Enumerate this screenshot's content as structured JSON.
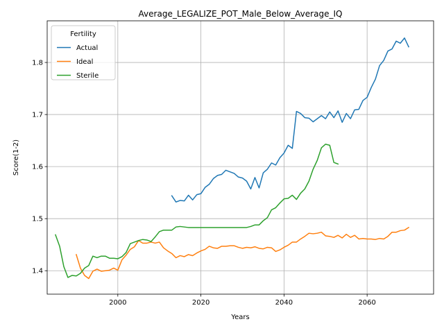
{
  "chart_data": {
    "type": "line",
    "title": "Average_LEGALIZE_POT_Male_Below_Average_IQ",
    "xlabel": "Years",
    "ylabel": "Score(1-2)",
    "xlim": [
      1983,
      2076
    ],
    "ylim": [
      1.355,
      1.88
    ],
    "xticks": [
      2000,
      2020,
      2040,
      2060
    ],
    "yticks": [
      1.4,
      1.5,
      1.6,
      1.7,
      1.8
    ],
    "grid": true,
    "legend": {
      "title": "Fertility",
      "position": "top-left"
    },
    "series": [
      {
        "name": "Actual",
        "color": "#1f77b4",
        "points": [
          [
            2013,
            1.544
          ],
          [
            2014,
            1.532
          ],
          [
            2015,
            1.535
          ],
          [
            2016,
            1.534
          ],
          [
            2017,
            1.545
          ],
          [
            2018,
            1.536
          ],
          [
            2019,
            1.546
          ],
          [
            2020,
            1.548
          ],
          [
            2021,
            1.56
          ],
          [
            2022,
            1.566
          ],
          [
            2023,
            1.577
          ],
          [
            2024,
            1.583
          ],
          [
            2025,
            1.585
          ],
          [
            2026,
            1.593
          ],
          [
            2027,
            1.59
          ],
          [
            2028,
            1.587
          ],
          [
            2029,
            1.58
          ],
          [
            2030,
            1.578
          ],
          [
            2031,
            1.572
          ],
          [
            2032,
            1.557
          ],
          [
            2033,
            1.579
          ],
          [
            2034,
            1.559
          ],
          [
            2035,
            1.588
          ],
          [
            2036,
            1.595
          ],
          [
            2037,
            1.607
          ],
          [
            2038,
            1.603
          ],
          [
            2039,
            1.617
          ],
          [
            2040,
            1.626
          ],
          [
            2041,
            1.641
          ],
          [
            2042,
            1.635
          ],
          [
            2043,
            1.706
          ],
          [
            2044,
            1.702
          ],
          [
            2045,
            1.694
          ],
          [
            2046,
            1.693
          ],
          [
            2047,
            1.686
          ],
          [
            2048,
            1.692
          ],
          [
            2049,
            1.698
          ],
          [
            2050,
            1.692
          ],
          [
            2051,
            1.705
          ],
          [
            2052,
            1.694
          ],
          [
            2053,
            1.707
          ],
          [
            2054,
            1.685
          ],
          [
            2055,
            1.702
          ],
          [
            2056,
            1.692
          ],
          [
            2057,
            1.709
          ],
          [
            2058,
            1.71
          ],
          [
            2059,
            1.727
          ],
          [
            2060,
            1.733
          ],
          [
            2061,
            1.752
          ],
          [
            2062,
            1.768
          ],
          [
            2063,
            1.794
          ],
          [
            2064,
            1.804
          ],
          [
            2065,
            1.822
          ],
          [
            2066,
            1.826
          ],
          [
            2067,
            1.841
          ],
          [
            2068,
            1.837
          ],
          [
            2069,
            1.847
          ],
          [
            2070,
            1.83
          ]
        ]
      },
      {
        "name": "Ideal",
        "color": "#ff7f0e",
        "points": [
          [
            1990,
            1.431
          ],
          [
            1991,
            1.405
          ],
          [
            1992,
            1.391
          ],
          [
            1993,
            1.385
          ],
          [
            1994,
            1.399
          ],
          [
            1995,
            1.403
          ],
          [
            1996,
            1.399
          ],
          [
            1997,
            1.4
          ],
          [
            1998,
            1.401
          ],
          [
            1999,
            1.405
          ],
          [
            2000,
            1.401
          ],
          [
            2001,
            1.421
          ],
          [
            2002,
            1.43
          ],
          [
            2003,
            1.441
          ],
          [
            2004,
            1.446
          ],
          [
            2005,
            1.458
          ],
          [
            2006,
            1.453
          ],
          [
            2007,
            1.453
          ],
          [
            2008,
            1.455
          ],
          [
            2009,
            1.453
          ],
          [
            2010,
            1.455
          ],
          [
            2011,
            1.444
          ],
          [
            2012,
            1.438
          ],
          [
            2013,
            1.433
          ],
          [
            2014,
            1.425
          ],
          [
            2015,
            1.429
          ],
          [
            2016,
            1.427
          ],
          [
            2017,
            1.431
          ],
          [
            2018,
            1.429
          ],
          [
            2019,
            1.434
          ],
          [
            2020,
            1.438
          ],
          [
            2021,
            1.441
          ],
          [
            2022,
            1.447
          ],
          [
            2023,
            1.444
          ],
          [
            2024,
            1.443
          ],
          [
            2025,
            1.447
          ],
          [
            2026,
            1.447
          ],
          [
            2027,
            1.448
          ],
          [
            2028,
            1.448
          ],
          [
            2029,
            1.445
          ],
          [
            2030,
            1.443
          ],
          [
            2031,
            1.445
          ],
          [
            2032,
            1.444
          ],
          [
            2033,
            1.446
          ],
          [
            2034,
            1.443
          ],
          [
            2035,
            1.442
          ],
          [
            2036,
            1.445
          ],
          [
            2037,
            1.444
          ],
          [
            2038,
            1.437
          ],
          [
            2039,
            1.44
          ],
          [
            2040,
            1.445
          ],
          [
            2041,
            1.449
          ],
          [
            2042,
            1.455
          ],
          [
            2043,
            1.455
          ],
          [
            2044,
            1.461
          ],
          [
            2045,
            1.466
          ],
          [
            2046,
            1.472
          ],
          [
            2047,
            1.471
          ],
          [
            2048,
            1.472
          ],
          [
            2049,
            1.474
          ],
          [
            2050,
            1.467
          ],
          [
            2051,
            1.466
          ],
          [
            2052,
            1.464
          ],
          [
            2053,
            1.468
          ],
          [
            2054,
            1.463
          ],
          [
            2055,
            1.47
          ],
          [
            2056,
            1.464
          ],
          [
            2057,
            1.468
          ],
          [
            2058,
            1.461
          ],
          [
            2059,
            1.462
          ],
          [
            2060,
            1.461
          ],
          [
            2061,
            1.461
          ],
          [
            2062,
            1.46
          ],
          [
            2063,
            1.462
          ],
          [
            2064,
            1.461
          ],
          [
            2065,
            1.466
          ],
          [
            2066,
            1.474
          ],
          [
            2067,
            1.474
          ],
          [
            2068,
            1.477
          ],
          [
            2069,
            1.478
          ],
          [
            2070,
            1.483
          ]
        ]
      },
      {
        "name": "Sterile",
        "color": "#2ca02c",
        "points": [
          [
            1985,
            1.469
          ],
          [
            1986,
            1.447
          ],
          [
            1987,
            1.408
          ],
          [
            1988,
            1.387
          ],
          [
            1989,
            1.391
          ],
          [
            1990,
            1.39
          ],
          [
            1991,
            1.395
          ],
          [
            1992,
            1.405
          ],
          [
            1993,
            1.41
          ],
          [
            1994,
            1.428
          ],
          [
            1995,
            1.425
          ],
          [
            1996,
            1.428
          ],
          [
            1997,
            1.428
          ],
          [
            1998,
            1.424
          ],
          [
            1999,
            1.424
          ],
          [
            2000,
            1.423
          ],
          [
            2001,
            1.427
          ],
          [
            2002,
            1.435
          ],
          [
            2003,
            1.452
          ],
          [
            2004,
            1.455
          ],
          [
            2005,
            1.458
          ],
          [
            2006,
            1.46
          ],
          [
            2007,
            1.459
          ],
          [
            2008,
            1.456
          ],
          [
            2009,
            1.465
          ],
          [
            2010,
            1.475
          ],
          [
            2011,
            1.478
          ],
          [
            2012,
            1.478
          ],
          [
            2013,
            1.478
          ],
          [
            2014,
            1.484
          ],
          [
            2015,
            1.485
          ],
          [
            2016,
            1.484
          ],
          [
            2017,
            1.483
          ],
          [
            2018,
            1.483
          ],
          [
            2019,
            1.483
          ],
          [
            2020,
            1.483
          ],
          [
            2021,
            1.483
          ],
          [
            2022,
            1.483
          ],
          [
            2023,
            1.483
          ],
          [
            2024,
            1.483
          ],
          [
            2025,
            1.483
          ],
          [
            2026,
            1.483
          ],
          [
            2027,
            1.483
          ],
          [
            2028,
            1.483
          ],
          [
            2029,
            1.483
          ],
          [
            2030,
            1.483
          ],
          [
            2031,
            1.483
          ],
          [
            2032,
            1.485
          ],
          [
            2033,
            1.488
          ],
          [
            2034,
            1.488
          ],
          [
            2035,
            1.496
          ],
          [
            2036,
            1.502
          ],
          [
            2037,
            1.517
          ],
          [
            2038,
            1.521
          ],
          [
            2039,
            1.53
          ],
          [
            2040,
            1.538
          ],
          [
            2041,
            1.539
          ],
          [
            2042,
            1.545
          ],
          [
            2043,
            1.537
          ],
          [
            2044,
            1.549
          ],
          [
            2045,
            1.557
          ],
          [
            2046,
            1.572
          ],
          [
            2047,
            1.595
          ],
          [
            2048,
            1.612
          ],
          [
            2049,
            1.636
          ],
          [
            2050,
            1.643
          ],
          [
            2051,
            1.641
          ],
          [
            2052,
            1.608
          ],
          [
            2053,
            1.605
          ]
        ]
      }
    ]
  }
}
